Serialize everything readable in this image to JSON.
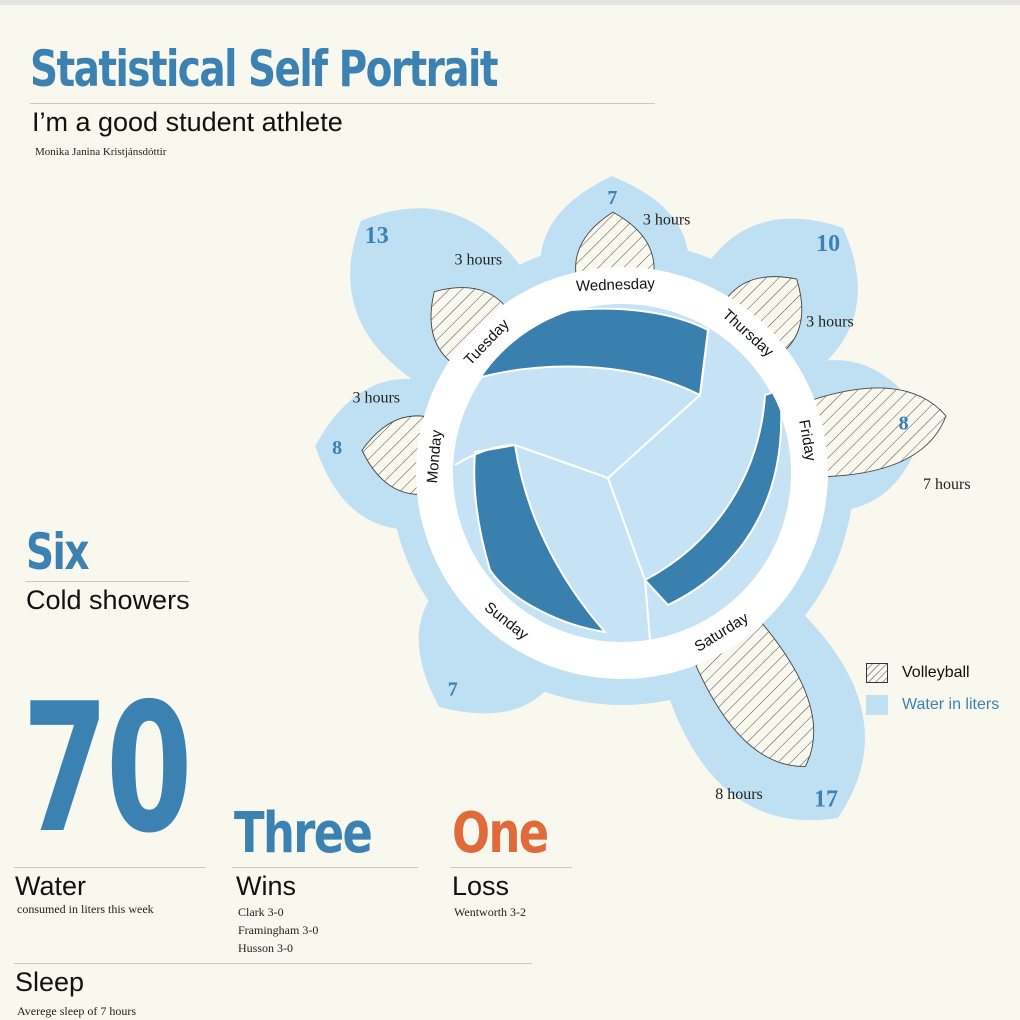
{
  "header": {
    "title": "Statistical Self Portrait",
    "subtitle": "I’m a good student athlete",
    "author": "Monika Janina Kristjánsdóttir"
  },
  "stats": {
    "showers": {
      "value": "Six",
      "label": "Cold showers"
    },
    "water": {
      "value": "70",
      "label": "Water",
      "note": "consumed in liters this week"
    },
    "wins": {
      "value": "Three",
      "label": "Wins",
      "details": [
        "Clark 3-0",
        "Framingham 3-0",
        "Husson 3-0"
      ]
    },
    "losses": {
      "value": "One",
      "label": "Loss",
      "details": [
        "Wentworth 3-2"
      ]
    },
    "sleep": {
      "label": "Sleep",
      "note": "Averege sleep of 7 hours"
    }
  },
  "legend": {
    "volleyball": "Volleyball",
    "water": "Water in liters"
  },
  "colors": {
    "accent": "#3b82b3",
    "loss": "#e06a3a",
    "water_fill": "#bfe0f3",
    "ball_light": "#c5e3f5",
    "ball_dark": "#3a80ae",
    "background": "#f9f8ee"
  },
  "chart_data": {
    "type": "radial",
    "categories": [
      "Monday",
      "Tuesday",
      "Wednesday",
      "Thursday",
      "Friday",
      "Saturday",
      "Sunday"
    ],
    "series": [
      {
        "name": "Water in liters",
        "values": [
          8,
          13,
          7,
          10,
          8,
          17,
          7
        ],
        "labels": [
          "8",
          "13",
          "7",
          "10",
          "8",
          "17",
          "7"
        ]
      },
      {
        "name": "Volleyball",
        "values": [
          3,
          3,
          3,
          3,
          7,
          8,
          0
        ],
        "labels": [
          "3 hours",
          "3 hours",
          "3 hours",
          "3 hours",
          "7 hours",
          "8 hours",
          ""
        ]
      }
    ]
  }
}
